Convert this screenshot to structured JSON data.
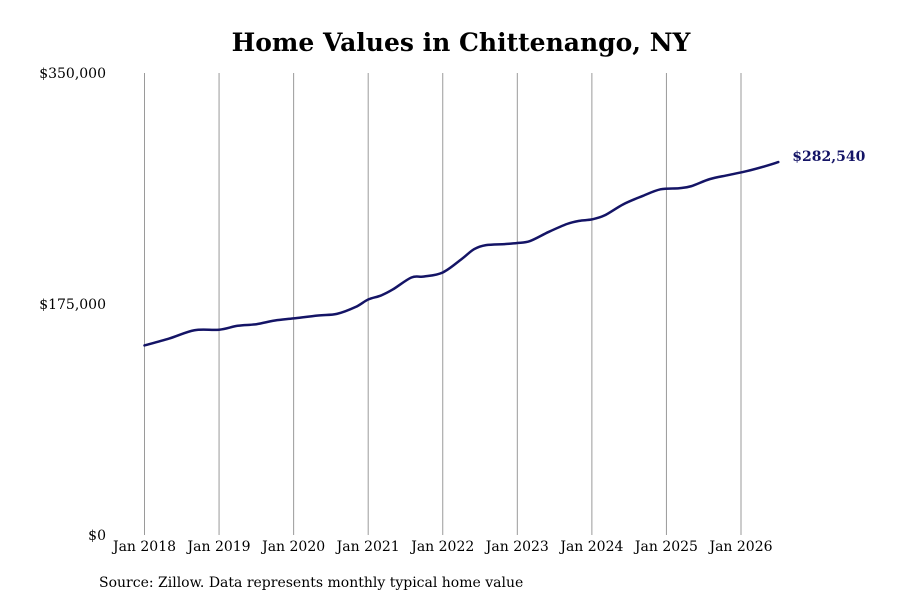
{
  "chart_data": {
    "type": "line",
    "title": "Home Values in Chittenango, NY",
    "xlabel": "",
    "ylabel": "",
    "ylim": [
      0,
      350000
    ],
    "y_ticks": [
      {
        "value": 0,
        "label": "$0"
      },
      {
        "value": 175000,
        "label": "$175,000"
      },
      {
        "value": 350000,
        "label": "$350,000"
      }
    ],
    "x_ticks": [
      {
        "value": 2018.0,
        "label": "Jan 2018"
      },
      {
        "value": 2019.0,
        "label": "Jan 2019"
      },
      {
        "value": 2020.0,
        "label": "Jan 2020"
      },
      {
        "value": 2021.0,
        "label": "Jan 2021"
      },
      {
        "value": 2022.0,
        "label": "Jan 2022"
      },
      {
        "value": 2023.0,
        "label": "Jan 2023"
      },
      {
        "value": 2024.0,
        "label": "Jan 2024"
      },
      {
        "value": 2025.0,
        "label": "Jan 2025"
      },
      {
        "value": 2026.0,
        "label": "Jan 2026"
      }
    ],
    "grid": "vertical",
    "series": [
      {
        "color": "#141466",
        "end_label": "$282,540",
        "points": [
          [
            2018.0,
            143600
          ],
          [
            2018.33,
            148800
          ],
          [
            2018.67,
            155100
          ],
          [
            2019.0,
            155500
          ],
          [
            2019.25,
            158500
          ],
          [
            2019.5,
            159700
          ],
          [
            2019.75,
            162500
          ],
          [
            2020.0,
            164100
          ],
          [
            2020.33,
            166300
          ],
          [
            2020.58,
            167500
          ],
          [
            2020.83,
            172700
          ],
          [
            2021.0,
            178400
          ],
          [
            2021.17,
            181400
          ],
          [
            2021.33,
            186000
          ],
          [
            2021.58,
            195100
          ],
          [
            2021.75,
            195800
          ],
          [
            2022.0,
            198900
          ],
          [
            2022.25,
            208900
          ],
          [
            2022.42,
            216500
          ],
          [
            2022.58,
            219600
          ],
          [
            2022.83,
            220400
          ],
          [
            2023.0,
            221200
          ],
          [
            2023.17,
            222700
          ],
          [
            2023.42,
            229600
          ],
          [
            2023.67,
            235700
          ],
          [
            2023.83,
            238000
          ],
          [
            2024.0,
            239100
          ],
          [
            2024.17,
            242100
          ],
          [
            2024.42,
            250500
          ],
          [
            2024.67,
            256600
          ],
          [
            2024.92,
            261900
          ],
          [
            2025.17,
            262700
          ],
          [
            2025.33,
            264200
          ],
          [
            2025.58,
            269600
          ],
          [
            2025.83,
            272700
          ],
          [
            2026.08,
            275700
          ],
          [
            2026.33,
            279500
          ],
          [
            2026.5,
            282540
          ]
        ]
      }
    ]
  },
  "footer": {
    "source": "Source: Zillow. Data represents monthly typical home value"
  }
}
